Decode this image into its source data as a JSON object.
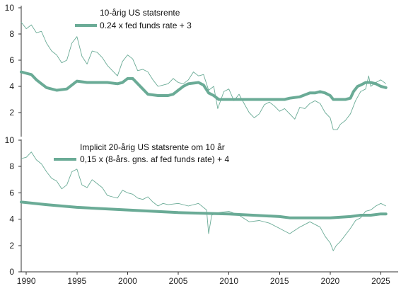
{
  "colors": {
    "series": "#6aab96",
    "axis": "#333333",
    "text": "#111111"
  },
  "chart_data": [
    {
      "type": "line",
      "xlabel": "",
      "ylabel": "",
      "xlim": [
        1989.5,
        2026.5
      ],
      "ylim": [
        0,
        10
      ],
      "yticks": [
        2,
        4,
        6,
        8,
        10
      ],
      "legend_position": "top-center",
      "series": [
        {
          "name": "10-årig US statsrente",
          "style": "thin",
          "x": [
            1989.5,
            1990.0,
            1990.5,
            1991.0,
            1991.5,
            1992.0,
            1992.5,
            1993.0,
            1993.5,
            1994.0,
            1994.5,
            1995.0,
            1995.5,
            1996.0,
            1996.5,
            1997.0,
            1997.5,
            1998.0,
            1998.5,
            1999.0,
            1999.5,
            2000.0,
            2000.5,
            2001.0,
            2001.5,
            2002.0,
            2002.5,
            2003.0,
            2003.5,
            2004.0,
            2004.5,
            2005.0,
            2005.5,
            2006.0,
            2006.5,
            2007.0,
            2007.5,
            2008.0,
            2008.5,
            2008.9,
            2009.5,
            2010.0,
            2010.5,
            2011.0,
            2011.5,
            2012.0,
            2012.5,
            2013.0,
            2013.5,
            2014.0,
            2014.5,
            2015.0,
            2015.5,
            2016.0,
            2016.5,
            2017.0,
            2017.5,
            2018.0,
            2018.5,
            2019.0,
            2019.5,
            2020.0,
            2020.3,
            2020.7,
            2021.0,
            2021.5,
            2022.0,
            2022.5,
            2023.0,
            2023.5,
            2023.8,
            2024.0,
            2024.5,
            2025.0,
            2025.5
          ],
          "y": [
            8.9,
            8.4,
            8.7,
            8.1,
            8.2,
            7.3,
            6.7,
            6.4,
            5.8,
            6.0,
            7.3,
            7.8,
            6.3,
            5.7,
            6.7,
            6.6,
            6.2,
            5.6,
            5.2,
            4.8,
            5.9,
            6.4,
            6.1,
            5.2,
            5.3,
            5.1,
            4.5,
            4.0,
            4.1,
            4.2,
            4.6,
            4.3,
            4.2,
            4.5,
            5.1,
            4.8,
            4.9,
            3.7,
            4.0,
            2.3,
            3.6,
            3.8,
            2.9,
            3.4,
            2.7,
            2.0,
            1.6,
            1.9,
            2.6,
            2.8,
            2.5,
            2.1,
            2.3,
            1.9,
            1.5,
            2.4,
            2.3,
            2.7,
            2.9,
            2.7,
            2.0,
            1.6,
            0.7,
            0.7,
            1.1,
            1.4,
            1.9,
            2.9,
            3.6,
            3.8,
            4.8,
            4.0,
            4.3,
            4.5,
            4.2
          ]
        },
        {
          "name": "0.24 x fed funds rate + 3",
          "style": "thick",
          "x": [
            1989.5,
            1990.0,
            1990.5,
            1991.0,
            1991.5,
            1992.0,
            1993.0,
            1994.0,
            1994.5,
            1995.0,
            1996.0,
            1998.0,
            1999.0,
            1999.5,
            2000.0,
            2000.5,
            2001.0,
            2001.5,
            2002.0,
            2003.0,
            2004.0,
            2004.5,
            2005.0,
            2005.5,
            2006.0,
            2007.0,
            2007.5,
            2008.0,
            2008.5,
            2009.0,
            2015.5,
            2016.0,
            2017.0,
            2018.0,
            2018.5,
            2019.0,
            2019.5,
            2020.0,
            2020.3,
            2021.5,
            2022.0,
            2022.3,
            2022.7,
            2023.0,
            2023.5,
            2024.0,
            2024.5,
            2025.0,
            2025.5
          ],
          "y": [
            5.1,
            5.0,
            4.9,
            4.5,
            4.2,
            3.9,
            3.7,
            3.8,
            4.1,
            4.4,
            4.3,
            4.3,
            4.2,
            4.3,
            4.6,
            4.6,
            4.2,
            3.8,
            3.4,
            3.3,
            3.3,
            3.4,
            3.7,
            4.0,
            4.2,
            4.3,
            4.1,
            3.5,
            3.3,
            3.0,
            3.0,
            3.1,
            3.2,
            3.5,
            3.5,
            3.6,
            3.5,
            3.3,
            3.0,
            3.0,
            3.1,
            3.6,
            4.0,
            4.1,
            4.3,
            4.3,
            4.2,
            4.0,
            3.9
          ]
        }
      ]
    },
    {
      "type": "line",
      "xlabel": "",
      "ylabel": "",
      "xlim": [
        1989.5,
        2026.5
      ],
      "ylim": [
        0,
        10
      ],
      "yticks": [
        0,
        2,
        4,
        6,
        8,
        10
      ],
      "xticks": [
        1990,
        1995,
        2000,
        2005,
        2010,
        2015,
        2020,
        2025
      ],
      "legend_position": "top-center",
      "series": [
        {
          "name": "Implicit 20-årig US statsrente om 10 år",
          "style": "thin",
          "x": [
            1989.5,
            1990.0,
            1990.5,
            1991.0,
            1991.5,
            1992.0,
            1992.5,
            1993.0,
            1993.5,
            1994.0,
            1994.5,
            1995.0,
            1995.5,
            1996.0,
            1996.5,
            1997.0,
            1997.5,
            1998.0,
            1998.5,
            1999.0,
            1999.5,
            2000.0,
            2000.5,
            2001.0,
            2001.5,
            2002.0,
            2002.5,
            2003.0,
            2003.5,
            2004.0,
            2005.0,
            2006.0,
            2007.0,
            2007.8,
            2008.0,
            2008.3,
            2009.0,
            2010.0,
            2011.0,
            2012.0,
            2013.0,
            2014.0,
            2015.0,
            2016.0,
            2017.0,
            2018.0,
            2019.0,
            2019.5,
            2020.0,
            2020.3,
            2020.6,
            2021.0,
            2021.5,
            2022.0,
            2022.5,
            2023.0,
            2023.5,
            2024.0,
            2024.5,
            2025.0,
            2025.5
          ],
          "y": [
            8.6,
            8.7,
            9.1,
            8.5,
            8.2,
            7.6,
            7.1,
            6.9,
            6.3,
            6.6,
            7.6,
            7.8,
            6.6,
            6.4,
            7.0,
            6.7,
            6.4,
            5.8,
            5.7,
            5.6,
            6.2,
            6.0,
            5.9,
            5.6,
            5.5,
            5.7,
            5.3,
            5.0,
            5.2,
            5.1,
            5.2,
            5.0,
            5.2,
            4.7,
            2.9,
            4.3,
            4.5,
            4.6,
            4.3,
            3.8,
            3.9,
            3.7,
            3.3,
            2.9,
            3.4,
            3.8,
            3.4,
            2.7,
            2.2,
            1.6,
            2.0,
            2.3,
            2.8,
            3.3,
            3.9,
            4.1,
            4.6,
            4.7,
            5.0,
            5.2,
            5.0
          ]
        },
        {
          "name": "0,15 x (8-års. gns. af fed funds rate) + 4",
          "style": "thick",
          "x": [
            1989.5,
            1992.0,
            1995.0,
            2000.0,
            2005.0,
            2010.0,
            2015.0,
            2016.0,
            2018.0,
            2020.0,
            2022.0,
            2023.0,
            2024.0,
            2025.0,
            2025.5
          ],
          "y": [
            5.3,
            5.1,
            4.9,
            4.7,
            4.5,
            4.4,
            4.2,
            4.1,
            4.1,
            4.1,
            4.2,
            4.3,
            4.3,
            4.4,
            4.4
          ]
        }
      ]
    }
  ]
}
